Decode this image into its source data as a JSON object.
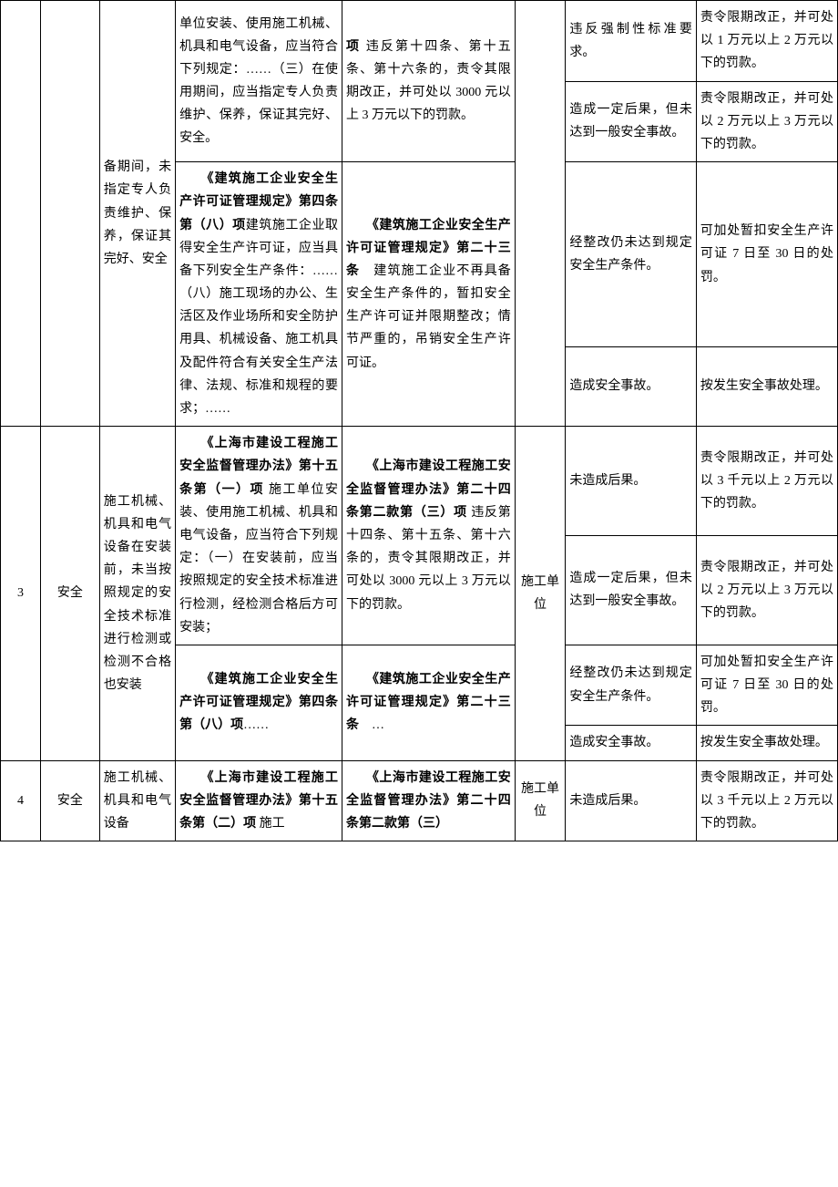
{
  "colwidths": [
    "38",
    "56",
    "72",
    "158",
    "164",
    "48",
    "124",
    "134"
  ],
  "rows": [
    {
      "c0": {
        "rowspan": 5,
        "text": ""
      },
      "c1": {
        "rowspan": 5,
        "text": ""
      },
      "c2": {
        "rowspan": 5,
        "text": "备期间，未指定专人负责维护、保养，保证其完好、安全",
        "cls": "justify"
      },
      "c3": {
        "rowspan": 2,
        "text": "单位安装、使用施工机械、机具和电气设备，应当符合下列规定：……（三）在使用期间，应当指定专人负责维护、保养，保证其完好、安全。",
        "cls": "justify"
      },
      "c4": {
        "rowspan": 2,
        "html": "<span class=\"bold\">项</span> 违反第十四条、第十五条、第十六条的，责令其限期改正，并可处以 3000 元以上 3 万元以下的罚款。",
        "cls": "justify"
      },
      "c5": {
        "rowspan": 5,
        "text": ""
      },
      "c6": {
        "text": "违反强制性标准要求。",
        "cls": "justify"
      },
      "c7": {
        "text": "责令限期改正，并可处以 1 万元以上 2 万元以下的罚款。",
        "cls": "justify"
      }
    },
    {
      "c6": {
        "text": "造成一定后果，但未达到一般安全事故。",
        "cls": "justify"
      },
      "c7": {
        "text": "责令限期改正，并可处以 2 万元以上 3 万元以下的罚款。",
        "cls": "justify"
      }
    },
    {
      "c3": {
        "rowspan": 3,
        "html": "　　<span class=\"bold\">《建筑施工企业安全生产许可证管理规定》第四条第（八）项</span>建筑施工企业取得安全生产许可证，应当具备下列安全生产条件：……（八）施工现场的办公、生活区及作业场所和安全防护用具、机械设备、施工机具及配件符合有关安全生产法律、法规、标准和规程的要求；……",
        "cls": "justify"
      },
      "c4": {
        "rowspan": 3,
        "html": "　　<span class=\"bold\">《建筑施工企业安全生产许可证管理规定》第二十三条</span>　建筑施工企业不再具备安全生产条件的，暂扣安全生产许可证并限期整改；情节严重的，吊销安全生产许可证。",
        "cls": "justify"
      },
      "c6": {
        "rowspan": 2,
        "text": "经整改仍未达到规定安全生产条件。",
        "cls": "justify"
      },
      "c7": {
        "rowspan": 2,
        "text": "可加处暂扣安全生产许可证 7 日至 30 日的处罚。",
        "cls": "justify"
      }
    },
    {},
    {
      "c6": {
        "text": "造成安全事故。",
        "cls": "justify"
      },
      "c7": {
        "text": "按发生安全事故处理。",
        "cls": "justify"
      }
    },
    {
      "c0": {
        "rowspan": 4,
        "text": "3",
        "cls": "center"
      },
      "c1": {
        "rowspan": 4,
        "text": "安全",
        "cls": "center"
      },
      "c2": {
        "rowspan": 4,
        "text": "施工机械、机具和电气设备在安装前，未当按照规定的安全技术标准进行检测或检测不合格也安装",
        "cls": "justify"
      },
      "c3": {
        "rowspan": 2,
        "html": "　　<span class=\"bold\">《上海市建设工程施工安全监督管理办法》第十五条第（一）项</span> 施工单位安装、使用施工机械、机具和电气设备，应当符合下列规定：（一）在安装前，应当按照规定的安全技术标准进行检测，经检测合格后方可安装；",
        "cls": "justify"
      },
      "c4": {
        "rowspan": 2,
        "html": "　　<span class=\"bold\">《上海市建设工程施工安全监督管理办法》第二十四条第二款第（三）项</span> 违反第十四条、第十五条、第十六条的，责令其限期改正，并可处以 3000 元以上 3 万元以下的罚款。",
        "cls": "justify"
      },
      "c5": {
        "rowspan": 4,
        "text": "施工单位",
        "cls": "center"
      },
      "c6": {
        "text": "未造成后果。",
        "cls": "justify"
      },
      "c7": {
        "text": "责令限期改正，并可处以 3 千元以上 2 万元以下的罚款。",
        "cls": "justify"
      }
    },
    {
      "c6": {
        "text": "造成一定后果，但未达到一般安全事故。",
        "cls": "justify"
      },
      "c7": {
        "text": "责令限期改正，并可处以 2 万元以上 3 万元以下的罚款。",
        "cls": "justify"
      }
    },
    {
      "c3": {
        "rowspan": 2,
        "html": "　　<span class=\"bold\">《建筑施工企业安全生产许可证管理规定》第四条第（八）项</span>……",
        "cls": "justify"
      },
      "c4": {
        "rowspan": 2,
        "html": "　　<span class=\"bold\">《建筑施工企业安全生产许可证管理规定》第二十三条</span>　…",
        "cls": "justify"
      },
      "c6": {
        "text": "经整改仍未达到规定安全生产条件。",
        "cls": "justify"
      },
      "c7": {
        "text": "可加处暂扣安全生产许可证 7 日至 30 日的处罚。",
        "cls": "justify"
      }
    },
    {
      "c6": {
        "text": "造成安全事故。",
        "cls": "justify"
      },
      "c7": {
        "text": "按发生安全事故处理。",
        "cls": "justify"
      }
    },
    {
      "c0": {
        "text": "4",
        "cls": "center"
      },
      "c1": {
        "text": "安全",
        "cls": "center"
      },
      "c2": {
        "text": "施工机械、机具和电气设备",
        "cls": "justify"
      },
      "c3": {
        "html": "　　<span class=\"bold\">《上海市建设工程施工安全监督管理办法》第十五条第（二）项</span> 施工",
        "cls": "justify"
      },
      "c4": {
        "html": "　　<span class=\"bold\">《上海市建设工程施工安全监督管理办法》第二十四条第二款第（三）</span>",
        "cls": "justify"
      },
      "c5": {
        "text": "施工单位",
        "cls": "center"
      },
      "c6": {
        "text": "未造成后果。",
        "cls": "justify"
      },
      "c7": {
        "text": "责令限期改正，并可处以 3 千元以上 2 万元以下的罚款。",
        "cls": "justify"
      }
    }
  ]
}
